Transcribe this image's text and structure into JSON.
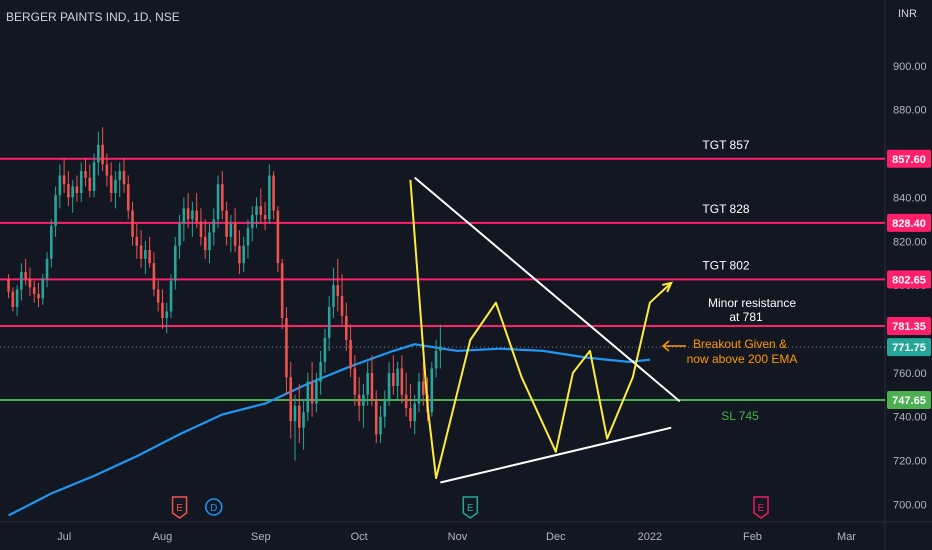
{
  "header": {
    "symbol_title": "BERGER PAINTS IND, 1D, NSE",
    "currency": "INR"
  },
  "chart_data": {
    "type": "candlestick",
    "ylim": [
      692,
      930
    ],
    "y_ticks": [
      700,
      720,
      740,
      760,
      780,
      800,
      820,
      840,
      860,
      880,
      900
    ],
    "x_labels": [
      {
        "label": "Jul",
        "t": 13
      },
      {
        "label": "Aug",
        "t": 36
      },
      {
        "label": "Sep",
        "t": 59
      },
      {
        "label": "Oct",
        "t": 82
      },
      {
        "label": "Nov",
        "t": 105
      },
      {
        "label": "Dec",
        "t": 128
      },
      {
        "label": "2022",
        "t": 150
      },
      {
        "label": "Feb",
        "t": 174
      },
      {
        "label": "Mar",
        "t": 196
      }
    ],
    "colors": {
      "up": "#26a69a",
      "down": "#ef5350",
      "ema": "#2196f3",
      "resistance": "#ff1f6a",
      "support": "#4caf50",
      "pattern": "#ffeb3b",
      "trendline": "#ffffff",
      "annotation": "#ff9800"
    },
    "candles_ohlc": [
      [
        803,
        805,
        794,
        797
      ],
      [
        797,
        799,
        788,
        790
      ],
      [
        790,
        800,
        786,
        798
      ],
      [
        798,
        810,
        793,
        806
      ],
      [
        806,
        812,
        800,
        803
      ],
      [
        803,
        808,
        795,
        799
      ],
      [
        799,
        802,
        792,
        796
      ],
      [
        796,
        801,
        790,
        794
      ],
      [
        794,
        805,
        791,
        803
      ],
      [
        803,
        815,
        799,
        812
      ],
      [
        812,
        830,
        808,
        827
      ],
      [
        827,
        845,
        822,
        841
      ],
      [
        841,
        855,
        835,
        850
      ],
      [
        850,
        858,
        842,
        846
      ],
      [
        846,
        852,
        836,
        840
      ],
      [
        840,
        848,
        833,
        845
      ],
      [
        845,
        850,
        838,
        842
      ],
      [
        842,
        856,
        838,
        852
      ],
      [
        852,
        858,
        845,
        849
      ],
      [
        849,
        855,
        840,
        843
      ],
      [
        843,
        860,
        840,
        856
      ],
      [
        856,
        870,
        850,
        864
      ],
      [
        864,
        872,
        852,
        855
      ],
      [
        855,
        860,
        845,
        850
      ],
      [
        850,
        856,
        838,
        842
      ],
      [
        842,
        852,
        835,
        848
      ],
      [
        848,
        856,
        840,
        852
      ],
      [
        852,
        858,
        842,
        846
      ],
      [
        846,
        850,
        830,
        834
      ],
      [
        834,
        838,
        818,
        822
      ],
      [
        822,
        828,
        812,
        818
      ],
      [
        818,
        825,
        808,
        812
      ],
      [
        812,
        820,
        805,
        816
      ],
      [
        816,
        822,
        808,
        810
      ],
      [
        810,
        815,
        795,
        798
      ],
      [
        798,
        802,
        788,
        792
      ],
      [
        792,
        798,
        780,
        785
      ],
      [
        785,
        792,
        778,
        788
      ],
      [
        788,
        805,
        785,
        802
      ],
      [
        802,
        822,
        798,
        818
      ],
      [
        818,
        832,
        812,
        828
      ],
      [
        828,
        840,
        820,
        835
      ],
      [
        835,
        842,
        826,
        830
      ],
      [
        830,
        838,
        822,
        834
      ],
      [
        834,
        842,
        826,
        829
      ],
      [
        829,
        835,
        818,
        822
      ],
      [
        822,
        830,
        812,
        816
      ],
      [
        816,
        828,
        810,
        824
      ],
      [
        824,
        835,
        818,
        830
      ],
      [
        830,
        850,
        826,
        846
      ],
      [
        846,
        852,
        830,
        834
      ],
      [
        834,
        838,
        818,
        822
      ],
      [
        822,
        832,
        815,
        828
      ],
      [
        828,
        835,
        815,
        818
      ],
      [
        818,
        825,
        805,
        810
      ],
      [
        810,
        822,
        806,
        818
      ],
      [
        818,
        830,
        812,
        826
      ],
      [
        826,
        836,
        820,
        832
      ],
      [
        832,
        840,
        826,
        836
      ],
      [
        836,
        844,
        828,
        832
      ],
      [
        832,
        838,
        825,
        830
      ],
      [
        830,
        855,
        828,
        850
      ],
      [
        850,
        852,
        830,
        834
      ],
      [
        834,
        836,
        806,
        810
      ],
      [
        810,
        812,
        780,
        785
      ],
      [
        785,
        790,
        750,
        758
      ],
      [
        758,
        765,
        730,
        738
      ],
      [
        738,
        750,
        720,
        745
      ],
      [
        745,
        755,
        728,
        735
      ],
      [
        735,
        748,
        725,
        742
      ],
      [
        742,
        760,
        738,
        756
      ],
      [
        756,
        765,
        740,
        746
      ],
      [
        746,
        760,
        742,
        756
      ],
      [
        756,
        770,
        750,
        765
      ],
      [
        765,
        780,
        760,
        776
      ],
      [
        776,
        795,
        770,
        790
      ],
      [
        790,
        808,
        785,
        800
      ],
      [
        800,
        812,
        788,
        795
      ],
      [
        795,
        805,
        782,
        786
      ],
      [
        786,
        792,
        770,
        775
      ],
      [
        775,
        782,
        758,
        762
      ],
      [
        762,
        768,
        745,
        750
      ],
      [
        750,
        758,
        738,
        745
      ],
      [
        745,
        755,
        735,
        750
      ],
      [
        750,
        765,
        745,
        760
      ],
      [
        760,
        768,
        745,
        748
      ],
      [
        748,
        752,
        728,
        732
      ],
      [
        732,
        745,
        728,
        740
      ],
      [
        740,
        752,
        735,
        748
      ],
      [
        748,
        765,
        745,
        760
      ],
      [
        760,
        768,
        750,
        754
      ],
      [
        754,
        765,
        748,
        762
      ],
      [
        762,
        768,
        746,
        750
      ],
      [
        750,
        760,
        740,
        744
      ],
      [
        744,
        755,
        735,
        738
      ],
      [
        738,
        750,
        732,
        746
      ],
      [
        746,
        760,
        742,
        756
      ],
      [
        756,
        765,
        745,
        750
      ],
      [
        750,
        758,
        738,
        742
      ],
      [
        742,
        765,
        740,
        762
      ],
      [
        762,
        775,
        758,
        770
      ],
      [
        770,
        782,
        762,
        772
      ]
    ],
    "series": [
      {
        "name": "200 EMA",
        "points": [
          [
            0,
            695
          ],
          [
            10,
            705
          ],
          [
            20,
            713
          ],
          [
            30,
            722
          ],
          [
            40,
            732
          ],
          [
            50,
            741
          ],
          [
            60,
            746
          ],
          [
            70,
            755
          ],
          [
            80,
            763
          ],
          [
            90,
            770
          ],
          [
            95,
            773
          ],
          [
            105,
            770
          ],
          [
            115,
            771
          ],
          [
            125,
            770
          ],
          [
            135,
            767
          ],
          [
            145,
            765
          ],
          [
            150,
            766
          ]
        ]
      }
    ],
    "price_levels": [
      {
        "label": "TGT 857",
        "badge": "857.60",
        "value": 857.6,
        "kind": "resistance"
      },
      {
        "label": "TGT 828",
        "badge": "828.40",
        "value": 828.4,
        "kind": "resistance"
      },
      {
        "label": "TGT 802",
        "badge": "802.65",
        "value": 802.65,
        "kind": "resistance"
      },
      {
        "label": "",
        "badge": "781.35",
        "value": 781.35,
        "kind": "resistance"
      },
      {
        "label": "SL 745",
        "badge": "747.65",
        "value": 747.65,
        "kind": "support"
      }
    ],
    "last_price": {
      "badge": "771.75",
      "value": 771.75
    },
    "annotations": {
      "minor_resistance": [
        "Minor resistance",
        "at 781"
      ],
      "breakout": [
        "Breakout Given &",
        "now above 200 EMA"
      ]
    },
    "pattern_path": [
      [
        94,
        848
      ],
      [
        98,
        745
      ],
      [
        100,
        712
      ],
      [
        108,
        775
      ],
      [
        114,
        792
      ],
      [
        120,
        758
      ],
      [
        128,
        724
      ],
      [
        132,
        760
      ],
      [
        136,
        770
      ],
      [
        140,
        730
      ],
      [
        146,
        758
      ],
      [
        150,
        792
      ],
      [
        155,
        801
      ]
    ],
    "triangle_upper": [
      [
        95,
        849
      ],
      [
        157,
        747
      ]
    ],
    "triangle_lower": [
      [
        101,
        710
      ],
      [
        155,
        735
      ]
    ],
    "event_markers": [
      {
        "label": "E",
        "t": 40,
        "kind": "earnings-red"
      },
      {
        "label": "D",
        "t": 48,
        "kind": "dividend-blue"
      },
      {
        "label": "E",
        "t": 108,
        "kind": "earnings-green"
      },
      {
        "label": "E",
        "t": 176,
        "kind": "earnings-pink"
      }
    ],
    "legend": "none",
    "grid": false
  }
}
